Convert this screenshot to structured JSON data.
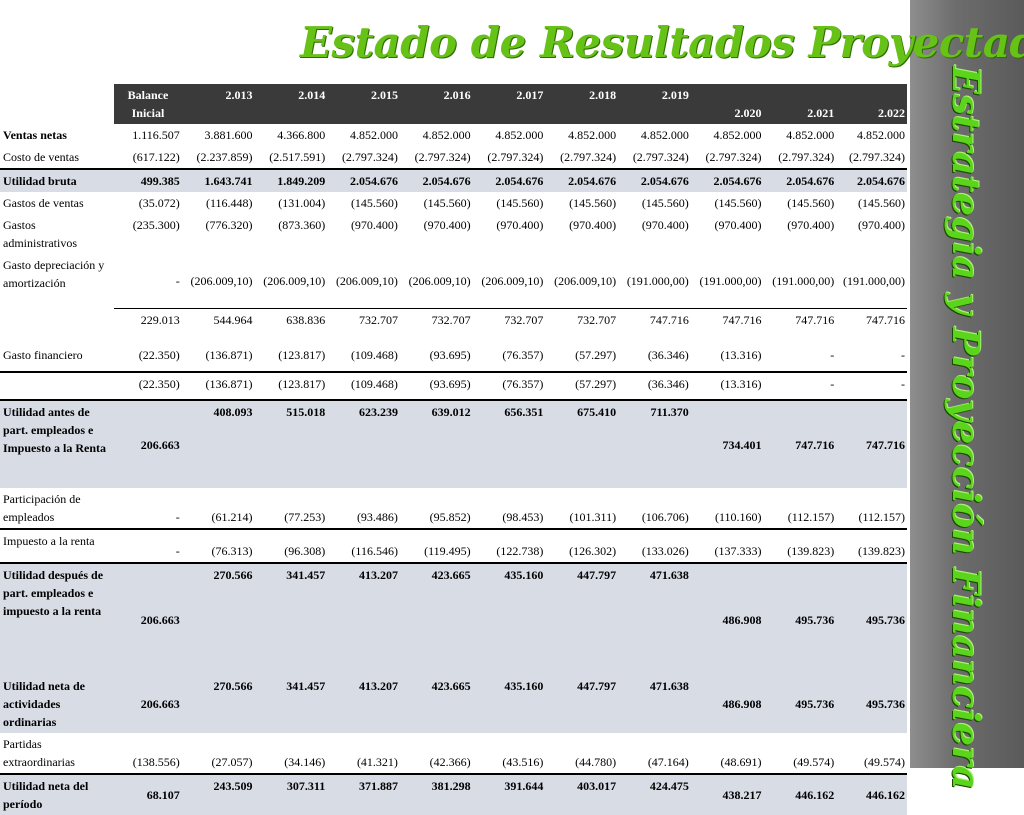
{
  "title": "Estado de Resultados Proyectado",
  "side_title": "Estrategia y Proyección Financiera",
  "table": {
    "headers": [
      "Balance Inicial",
      "2.013",
      "2.014",
      "2.015",
      "2.016",
      "2.017",
      "2.018",
      "2.019",
      "2.020",
      "2.021",
      "2.022"
    ],
    "rows": [
      {
        "label": "Ventas netas",
        "values": [
          "1.116.507",
          "3.881.600",
          "4.366.800",
          "4.852.000",
          "4.852.000",
          "4.852.000",
          "4.852.000",
          "4.852.000",
          "4.852.000",
          "4.852.000",
          "4.852.000"
        ]
      },
      {
        "label": "Costo de ventas",
        "values": [
          "(617.122)",
          "(2.237.859)",
          "(2.517.591)",
          "(2.797.324)",
          "(2.797.324)",
          "(2.797.324)",
          "(2.797.324)",
          "(2.797.324)",
          "(2.797.324)",
          "(2.797.324)",
          "(2.797.324)"
        ]
      },
      {
        "label": "Utilidad bruta",
        "values": [
          "499.385",
          "1.643.741",
          "1.849.209",
          "2.054.676",
          "2.054.676",
          "2.054.676",
          "2.054.676",
          "2.054.676",
          "2.054.676",
          "2.054.676",
          "2.054.676"
        ]
      },
      {
        "label": "Gastos de ventas",
        "values": [
          "(35.072)",
          "(116.448)",
          "(131.004)",
          "(145.560)",
          "(145.560)",
          "(145.560)",
          "(145.560)",
          "(145.560)",
          "(145.560)",
          "(145.560)",
          "(145.560)"
        ]
      },
      {
        "label": "Gastos administrativos",
        "values": [
          "(235.300)",
          "(776.320)",
          "(873.360)",
          "(970.400)",
          "(970.400)",
          "(970.400)",
          "(970.400)",
          "(970.400)",
          "(970.400)",
          "(970.400)",
          "(970.400)"
        ]
      },
      {
        "label": "Gasto depreciación y amortización",
        "values": [
          "-",
          "(206.009,10)",
          "(206.009,10)",
          "(206.009,10)",
          "(206.009,10)",
          "(206.009,10)",
          "(206.009,10)",
          "(191.000,00)",
          "(191.000,00)",
          "(191.000,00)",
          "(191.000,00)"
        ]
      },
      {
        "label": "",
        "values": [
          "229.013",
          "544.964",
          "638.836",
          "732.707",
          "732.707",
          "732.707",
          "732.707",
          "747.716",
          "747.716",
          "747.716",
          "747.716"
        ]
      },
      {
        "label": "Gasto financiero",
        "values": [
          "(22.350)",
          "(136.871)",
          "(123.817)",
          "(109.468)",
          "(93.695)",
          "(76.357)",
          "(57.297)",
          "(36.346)",
          "(13.316)",
          "-",
          "-"
        ]
      },
      {
        "label": "",
        "values": [
          "(22.350)",
          "(136.871)",
          "(123.817)",
          "(109.468)",
          "(93.695)",
          "(76.357)",
          "(57.297)",
          "(36.346)",
          "(13.316)",
          "-",
          "-"
        ]
      },
      {
        "label": "Utilidad antes de part. empleados e Impuesto a la Renta",
        "values": [
          "206.663",
          "408.093",
          "515.018",
          "623.239",
          "639.012",
          "656.351",
          "675.410",
          "711.370",
          "734.401",
          "747.716",
          "747.716"
        ]
      },
      {
        "label": "Participación de empleados",
        "values": [
          "-",
          "(61.214)",
          "(77.253)",
          "(93.486)",
          "(95.852)",
          "(98.453)",
          "(101.311)",
          "(106.706)",
          "(110.160)",
          "(112.157)",
          "(112.157)"
        ]
      },
      {
        "label": "Impuesto a la renta",
        "values": [
          "-",
          "(76.313)",
          "(96.308)",
          "(116.546)",
          "(119.495)",
          "(122.738)",
          "(126.302)",
          "(133.026)",
          "(137.333)",
          "(139.823)",
          "(139.823)"
        ]
      },
      {
        "label": "Utilidad después de part. empleados e impuesto a la renta",
        "values": [
          "206.663",
          "270.566",
          "341.457",
          "413.207",
          "423.665",
          "435.160",
          "447.797",
          "471.638",
          "486.908",
          "495.736",
          "495.736"
        ]
      },
      {
        "label": "Utilidad neta de actividades ordinarias",
        "values": [
          "206.663",
          "270.566",
          "341.457",
          "413.207",
          "423.665",
          "435.160",
          "447.797",
          "471.638",
          "486.908",
          "495.736",
          "495.736"
        ]
      },
      {
        "label": "Partidas extraordinarias",
        "values": [
          "(138.556)",
          "(27.057)",
          "(34.146)",
          "(41.321)",
          "(42.366)",
          "(43.516)",
          "(44.780)",
          "(47.164)",
          "(48.691)",
          "(49.574)",
          "(49.574)"
        ]
      },
      {
        "label": "Utilidad neta del período",
        "values": [
          "68.107",
          "243.509",
          "307.311",
          "371.887",
          "381.298",
          "391.644",
          "403.017",
          "424.475",
          "438.217",
          "446.162",
          "446.162"
        ]
      }
    ]
  },
  "colors": {
    "title_green": "#66c216",
    "header_bg": "#3a3a3a",
    "shade": "#d7dce5",
    "sidebar_bg": "#6d6d6d"
  }
}
